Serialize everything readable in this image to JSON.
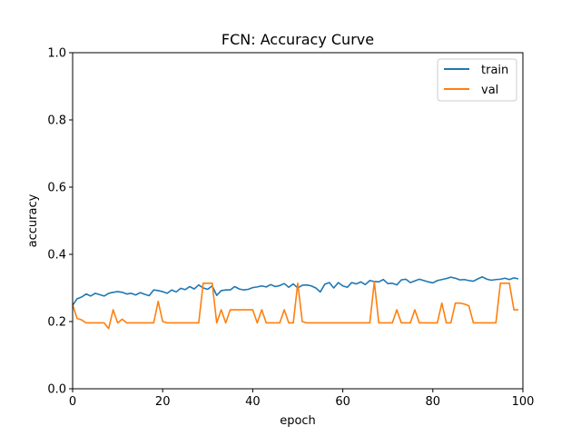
{
  "chart_data": {
    "type": "line",
    "title": "FCN: Accuracy Curve",
    "xlabel": "epoch",
    "ylabel": "accuracy",
    "xlim": [
      0,
      100
    ],
    "ylim": [
      0,
      1.0
    ],
    "xticks": [
      0,
      20,
      40,
      60,
      80,
      100
    ],
    "xtick_labels": [
      "0",
      "20",
      "40",
      "60",
      "80",
      "100"
    ],
    "yticks": [
      0,
      0.2,
      0.4,
      0.6,
      0.8,
      1.0
    ],
    "ytick_labels": [
      "0.0",
      "0.2",
      "0.4",
      "0.6",
      "0.8",
      "1.0"
    ],
    "grid": false,
    "legend_position": "top-right",
    "x": [
      0,
      1,
      2,
      3,
      4,
      5,
      6,
      7,
      8,
      9,
      10,
      11,
      12,
      13,
      14,
      15,
      16,
      17,
      18,
      19,
      20,
      21,
      22,
      23,
      24,
      25,
      26,
      27,
      28,
      29,
      30,
      31,
      32,
      33,
      34,
      35,
      36,
      37,
      38,
      39,
      40,
      41,
      42,
      43,
      44,
      45,
      46,
      47,
      48,
      49,
      50,
      51,
      52,
      53,
      54,
      55,
      56,
      57,
      58,
      59,
      60,
      61,
      62,
      63,
      64,
      65,
      66,
      67,
      68,
      69,
      70,
      71,
      72,
      73,
      74,
      75,
      76,
      77,
      78,
      79,
      80,
      81,
      82,
      83,
      84,
      85,
      86,
      87,
      88,
      89,
      90,
      91,
      92,
      93,
      94,
      95,
      96,
      97,
      98,
      99
    ],
    "series": [
      {
        "name": "train",
        "color": "#1f77b4",
        "values": [
          0.248,
          0.268,
          0.273,
          0.282,
          0.276,
          0.284,
          0.28,
          0.276,
          0.284,
          0.287,
          0.289,
          0.287,
          0.282,
          0.284,
          0.279,
          0.286,
          0.281,
          0.277,
          0.294,
          0.292,
          0.289,
          0.284,
          0.294,
          0.288,
          0.299,
          0.295,
          0.304,
          0.297,
          0.309,
          0.3,
          0.296,
          0.306,
          0.278,
          0.292,
          0.294,
          0.294,
          0.304,
          0.297,
          0.294,
          0.296,
          0.301,
          0.303,
          0.306,
          0.303,
          0.31,
          0.304,
          0.307,
          0.313,
          0.302,
          0.312,
          0.3,
          0.308,
          0.309,
          0.306,
          0.3,
          0.288,
          0.311,
          0.316,
          0.3,
          0.316,
          0.306,
          0.302,
          0.316,
          0.312,
          0.318,
          0.31,
          0.322,
          0.319,
          0.318,
          0.325,
          0.313,
          0.314,
          0.309,
          0.324,
          0.326,
          0.316,
          0.321,
          0.326,
          0.322,
          0.318,
          0.315,
          0.322,
          0.325,
          0.328,
          0.332,
          0.329,
          0.324,
          0.325,
          0.322,
          0.32,
          0.327,
          0.333,
          0.326,
          0.323,
          0.325,
          0.326,
          0.329,
          0.325,
          0.33,
          0.327
        ]
      },
      {
        "name": "val",
        "color": "#ff7f0e",
        "values": [
          0.25,
          0.209,
          0.205,
          0.196,
          0.196,
          0.196,
          0.196,
          0.196,
          0.179,
          0.235,
          0.196,
          0.207,
          0.196,
          0.196,
          0.196,
          0.196,
          0.196,
          0.196,
          0.196,
          0.26,
          0.2,
          0.196,
          0.196,
          0.196,
          0.196,
          0.196,
          0.196,
          0.196,
          0.196,
          0.314,
          0.314,
          0.314,
          0.196,
          0.235,
          0.196,
          0.235,
          0.235,
          0.235,
          0.235,
          0.235,
          0.235,
          0.196,
          0.235,
          0.196,
          0.196,
          0.196,
          0.196,
          0.235,
          0.196,
          0.196,
          0.314,
          0.2,
          0.196,
          0.196,
          0.196,
          0.196,
          0.196,
          0.196,
          0.196,
          0.196,
          0.196,
          0.196,
          0.196,
          0.196,
          0.196,
          0.196,
          0.196,
          0.318,
          0.196,
          0.196,
          0.196,
          0.196,
          0.235,
          0.196,
          0.196,
          0.196,
          0.235,
          0.196,
          0.196,
          0.196,
          0.196,
          0.196,
          0.255,
          0.196,
          0.196,
          0.255,
          0.255,
          0.252,
          0.247,
          0.196,
          0.196,
          0.196,
          0.196,
          0.196,
          0.196,
          0.314,
          0.314,
          0.314,
          0.235,
          0.235
        ]
      }
    ]
  }
}
